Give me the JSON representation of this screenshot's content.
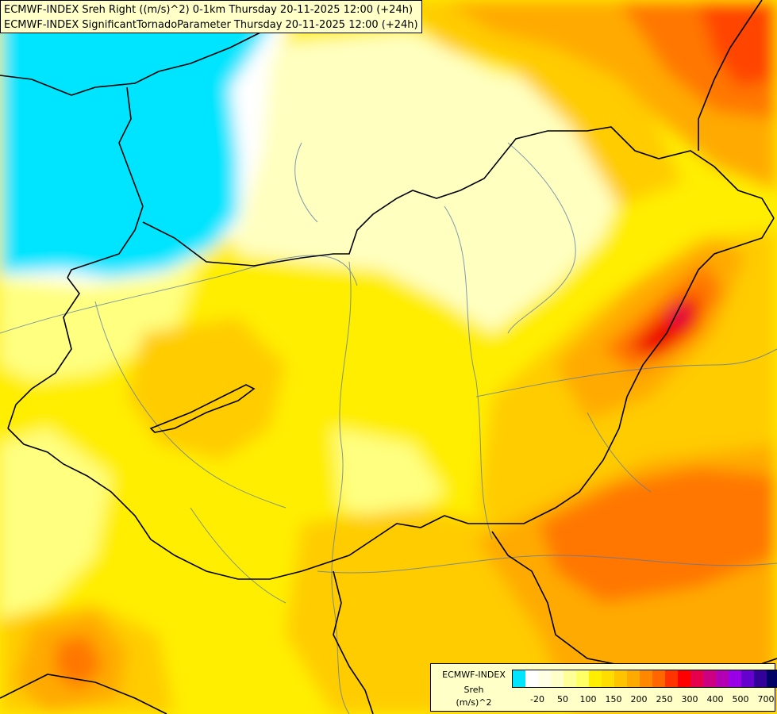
{
  "title": {
    "line1": "ECMWF-INDEX Sreh Right ((m/s)^2) 0-1km Thursday 20-11-2025 12:00 (+24h)",
    "line2": "ECMWF-INDEX SignificantTornadoParameter Thursday 20-11-2025 12:00 (+24h)"
  },
  "legend": {
    "source": "ECMWF-INDEX",
    "variable": "Sreh",
    "unit": "(m/s)^2",
    "swatch_colors": [
      "#00e5ff",
      "#ffffff",
      "#ffffe6",
      "#ffffcc",
      "#ffff99",
      "#ffff66",
      "#ffee00",
      "#ffdd00",
      "#ffc400",
      "#ffaa00",
      "#ff8800",
      "#ff6600",
      "#ff3300",
      "#ff0000",
      "#e6004c",
      "#cc0080",
      "#b300b3",
      "#9900e6",
      "#6600cc",
      "#330099",
      "#000066"
    ],
    "tick_labels": [
      "-20",
      "50",
      "100",
      "150",
      "200",
      "250",
      "300",
      "400",
      "500",
      "700"
    ]
  },
  "colors": {
    "cyan": "#00e5ff",
    "white": "#ffffff",
    "pale": "#ffffc0",
    "light_yellow": "#ffff80",
    "yellow": "#ffee00",
    "gold": "#ffcc00",
    "orange": "#ffaa00",
    "dark_orange": "#ff7700",
    "red_orange": "#ff4400",
    "red": "#ee0000",
    "magenta": "#cc0066"
  }
}
